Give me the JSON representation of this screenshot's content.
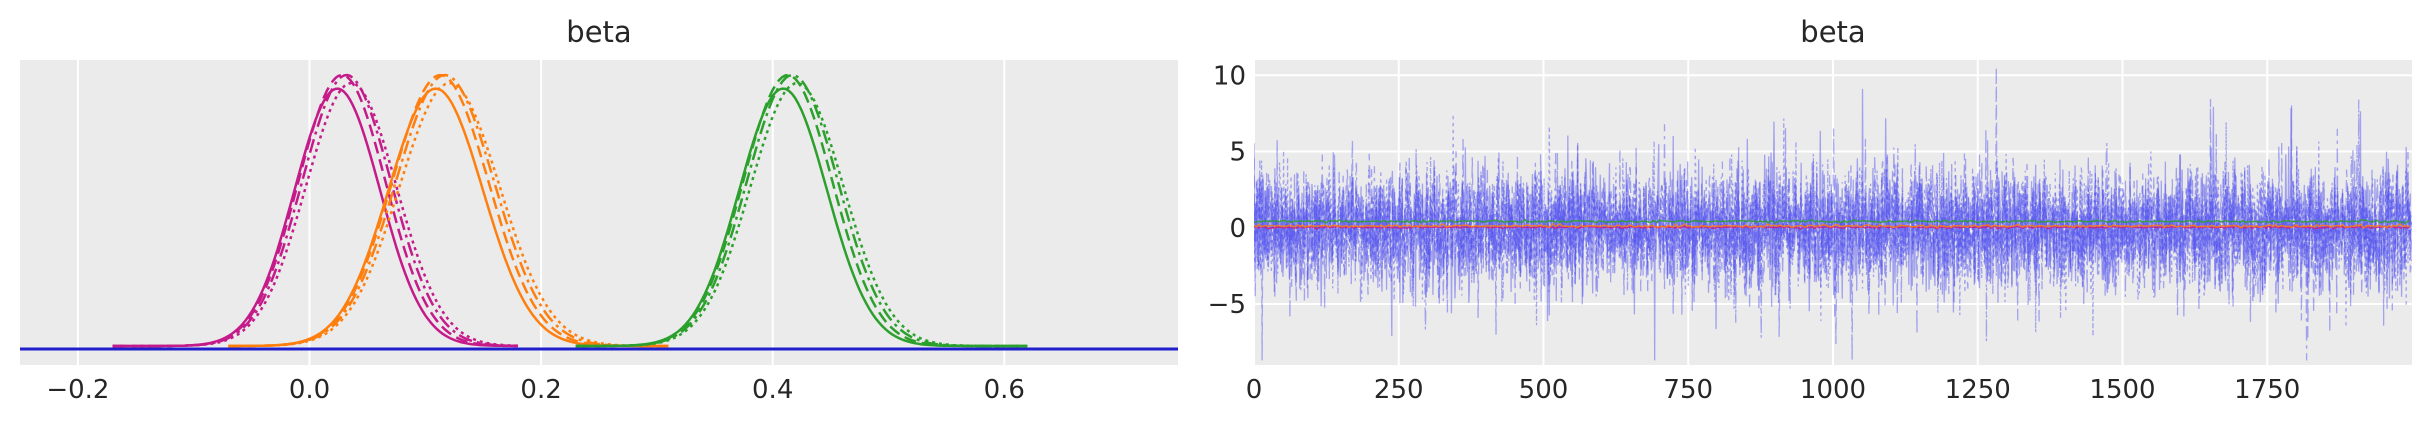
{
  "chart_data": [
    {
      "type": "line",
      "subtype": "kde",
      "title": "beta",
      "xlabel": "",
      "ylabel": "",
      "xlim": [
        -0.25,
        0.75
      ],
      "xticks": [
        -0.2,
        0.0,
        0.2,
        0.4,
        0.6
      ],
      "xtick_labels": [
        "−0.2",
        "0.0",
        "0.2",
        "0.4",
        "0.6"
      ],
      "grid": true,
      "background": "#ebebeb",
      "linestyles": [
        "solid",
        "dashed",
        "dashdot",
        "dotted"
      ],
      "series": [
        {
          "color": "#c51b8a",
          "mean": 0.03,
          "sd": 0.038,
          "x_range": [
            -0.17,
            0.18
          ]
        },
        {
          "color": "#ff7f0e",
          "mean": 0.115,
          "sd": 0.042,
          "x_range": [
            -0.07,
            0.31
          ]
        },
        {
          "color": "#2ca02c",
          "mean": 0.415,
          "sd": 0.039,
          "x_range": [
            0.23,
            0.62
          ]
        },
        {
          "color": "#1f1fcc",
          "mean": null,
          "sd": null,
          "x_range": [
            -0.25,
            0.75
          ],
          "note_flat": true
        }
      ]
    },
    {
      "type": "line",
      "subtype": "trace",
      "title": "beta",
      "xlabel": "",
      "ylabel": "",
      "xlim": [
        0,
        2000
      ],
      "ylim": [
        -9,
        11
      ],
      "xticks": [
        0,
        250,
        500,
        750,
        1000,
        1250,
        1500,
        1750
      ],
      "xtick_labels": [
        "0",
        "250",
        "500",
        "750",
        "1000",
        "1250",
        "1500",
        "1750"
      ],
      "yticks": [
        -5,
        0,
        5,
        10
      ],
      "ytick_labels": [
        "−5",
        "0",
        "5",
        "10"
      ],
      "grid": true,
      "background": "#ebebeb",
      "draws": 2000,
      "chains": 4,
      "series": [
        {
          "color": "#4a4af0",
          "mean": 0.0,
          "sd": 2.0
        },
        {
          "color": "#c51b8a",
          "mean": 0.03,
          "sd": 0.038
        },
        {
          "color": "#ff7f0e",
          "mean": 0.115,
          "sd": 0.042
        },
        {
          "color": "#2ca02c",
          "mean": 0.415,
          "sd": 0.039
        }
      ]
    }
  ]
}
